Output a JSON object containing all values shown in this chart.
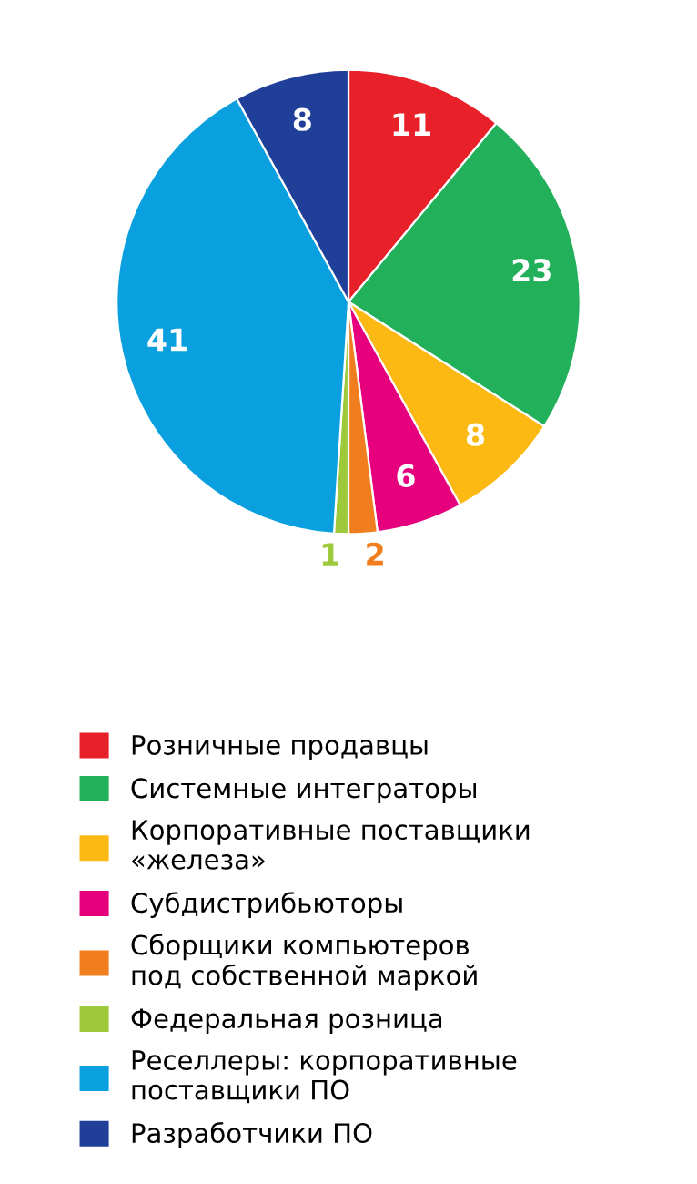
{
  "chart_data": {
    "type": "pie",
    "categories": [
      "Розничные продавцы",
      "Системные интеграторы",
      "Корпоративные поставщики\n«железа»",
      "Субдистрибьюторы",
      "Сборщики компьютеров\nпод собственной маркой",
      "Федеральная розница",
      "Реселлеры: корпоративные\nпоставщики ПО",
      "Разработчики ПО"
    ],
    "values": [
      11,
      23,
      8,
      6,
      2,
      1,
      41,
      8
    ],
    "colors": [
      "#e8202a",
      "#22b05a",
      "#fcb813",
      "#e6007e",
      "#f07e1f",
      "#9dc93b",
      "#0aa0e0",
      "#1f3f99"
    ],
    "data_labels": true,
    "legend": "bottom"
  }
}
